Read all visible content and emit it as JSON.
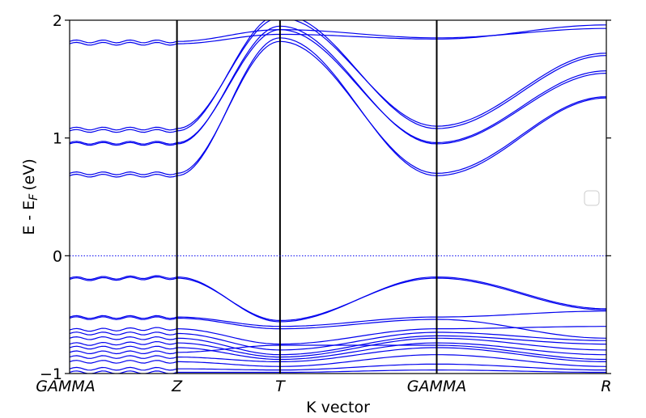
{
  "chart_data": {
    "type": "line",
    "xlabel": "K vector",
    "ylabel": "E - E",
    "ylabel_subscript": "F",
    "ylabel_unit": "(eV)",
    "ylim": [
      -1,
      2
    ],
    "yticks": [
      -1,
      0,
      1,
      2
    ],
    "grid": false,
    "fermi_level": 0,
    "fermi_line_style": "dotted",
    "band_color": "#0000ee",
    "legend": "right (empty)",
    "kpoints": [
      {
        "label": "GAMMA",
        "x": 0.0
      },
      {
        "label": "Z",
        "x": 1.0
      },
      {
        "label": "T",
        "x": 1.96
      },
      {
        "label": "GAMMA",
        "x": 3.42
      },
      {
        "label": "R",
        "x": 5.0
      }
    ],
    "bands": [
      {
        "name": "cb1",
        "values": [
          0.68,
          0.68,
          1.85,
          0.68,
          1.34
        ]
      },
      {
        "name": "cb2",
        "values": [
          0.7,
          0.7,
          1.82,
          0.7,
          1.35
        ]
      },
      {
        "name": "cb3",
        "values": [
          0.95,
          0.95,
          1.95,
          0.95,
          1.55
        ]
      },
      {
        "name": "cb4",
        "values": [
          0.96,
          0.96,
          1.92,
          0.96,
          1.57
        ]
      },
      {
        "name": "cb5",
        "values": [
          1.06,
          1.06,
          2.05,
          1.08,
          1.7
        ]
      },
      {
        "name": "cb6",
        "values": [
          1.08,
          1.08,
          2.02,
          1.1,
          1.72
        ]
      },
      {
        "name": "cb7",
        "values": [
          1.8,
          1.8,
          1.88,
          1.84,
          1.96
        ]
      },
      {
        "name": "cb8",
        "values": [
          1.82,
          1.82,
          1.92,
          1.85,
          1.93
        ]
      },
      {
        "name": "vb1",
        "values": [
          -0.19,
          -0.18,
          -0.56,
          -0.18,
          -0.45
        ]
      },
      {
        "name": "vb2",
        "values": [
          -0.2,
          -0.19,
          -0.55,
          -0.19,
          -0.46
        ]
      },
      {
        "name": "vb3",
        "values": [
          -0.52,
          -0.52,
          -0.6,
          -0.52,
          -0.47
        ]
      },
      {
        "name": "vb4",
        "values": [
          -0.53,
          -0.53,
          -0.62,
          -0.54,
          -0.7
        ]
      },
      {
        "name": "vb5",
        "values": [
          -0.63,
          -0.62,
          -0.75,
          -0.62,
          -0.6
        ]
      },
      {
        "name": "vb6",
        "values": [
          -0.66,
          -0.66,
          -0.8,
          -0.65,
          -0.72
        ]
      },
      {
        "name": "vb7",
        "values": [
          -0.7,
          -0.7,
          -0.84,
          -0.68,
          -0.75
        ]
      },
      {
        "name": "vb8",
        "values": [
          -0.75,
          -0.74,
          -0.86,
          -0.7,
          -0.8
        ]
      },
      {
        "name": "vb9",
        "values": [
          -0.78,
          -0.78,
          -0.88,
          -0.74,
          -0.84
        ]
      },
      {
        "name": "vb10",
        "values": [
          -0.82,
          -0.82,
          -0.76,
          -0.76,
          -0.88
        ]
      },
      {
        "name": "vb11",
        "values": [
          -0.86,
          -0.86,
          -0.9,
          -0.78,
          -0.9
        ]
      },
      {
        "name": "vb12",
        "values": [
          -0.9,
          -0.9,
          -0.94,
          -0.84,
          -0.94
        ]
      },
      {
        "name": "vb13",
        "values": [
          -0.96,
          -0.96,
          -0.97,
          -0.92,
          -0.97
        ]
      },
      {
        "name": "vb14",
        "values": [
          -0.99,
          -0.99,
          -0.99,
          -0.97,
          -0.99
        ]
      }
    ]
  }
}
